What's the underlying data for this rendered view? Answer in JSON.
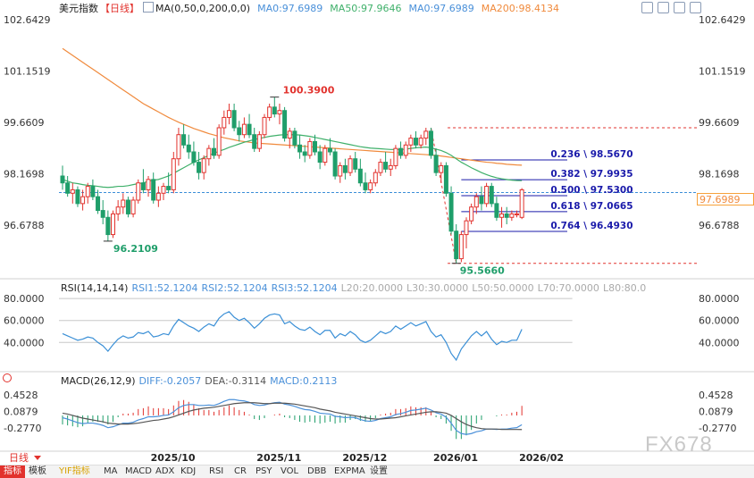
{
  "main_header": {
    "symbol": "美元指数",
    "period": "【日线】",
    "ma_params": "MA(0,50,0,200,0,0)",
    "ma0": "MA0:97.6989",
    "ma50": "MA50:97.9646",
    "ma0b": "MA0:97.6989",
    "ma200": "MA200:98.4134"
  },
  "rsi_header": {
    "title": "RSI(14,14,14)",
    "rsi1": "RSI1:52.1204",
    "rsi2": "RSI2:52.1204",
    "rsi3": "RSI3:52.1204",
    "l20": "L20:20.0000",
    "l30": "L30:30.0000",
    "l50": "L50:50.0000",
    "l70": "L70:70.0000",
    "l80": "L80:80.0"
  },
  "macd_header": {
    "title": "MACD(26,12,9)",
    "diff": "DIFF:-0.2057",
    "dea": "DEA:-0.3114",
    "macd": "MACD:0.2113"
  },
  "date_labels": [
    "2025/10",
    "2025/11",
    "2025/12",
    "2026/01",
    "2026/02"
  ],
  "bottom_bar": {
    "period_button": "日线",
    "tabs": [
      "指标",
      "模板",
      "YIF指标",
      "MA",
      "MACD",
      "ADX",
      "KDJ",
      "RSI",
      "CR",
      "PSY",
      "VOL",
      "DBB",
      "EXPMA",
      "设置"
    ]
  },
  "watermark": "FX678",
  "colors": {
    "up": "#e2322d",
    "down": "#1f9e6a",
    "ma50": "#3fb06a",
    "ma200": "#f08a3c",
    "fib": "#1a1aaa",
    "diff": "#4a90d9",
    "dea": "#555555",
    "price_tag": "#f7a23b"
  },
  "chart_data": [
    {
      "type": "candlestick",
      "title": "美元指数 日线",
      "ylim": [
        95.3,
        103.0
      ],
      "y_ticks": [
        "102.6429",
        "101.1519",
        "99.6609",
        "98.1698",
        "96.6788"
      ],
      "current_price": "97.6989",
      "annotations": {
        "high": "100.3900",
        "low1": "96.2109",
        "low2": "95.5660"
      },
      "fibonacci": [
        {
          "label": "0.236 \\ 98.5670",
          "value": 98.567
        },
        {
          "label": "0.382 \\ 97.9935",
          "value": 97.9935
        },
        {
          "label": "0.500 \\ 97.5300",
          "value": 97.53
        },
        {
          "label": "0.618 \\ 97.0665",
          "value": 97.0665
        },
        {
          "label": "0.764 \\ 96.4930",
          "value": 96.493
        }
      ],
      "fib_top": 99.5,
      "fib_bottom": 95.566,
      "candles": [
        [
          98.1,
          98.4,
          97.7,
          97.9
        ],
        [
          97.9,
          98.1,
          97.5,
          97.6
        ],
        [
          97.6,
          97.9,
          97.3,
          97.7
        ],
        [
          97.7,
          97.8,
          97.2,
          97.3
        ],
        [
          97.3,
          97.7,
          97.1,
          97.5
        ],
        [
          97.5,
          97.9,
          97.3,
          97.8
        ],
        [
          97.8,
          98.0,
          97.4,
          97.5
        ],
        [
          97.5,
          97.7,
          97.0,
          97.1
        ],
        [
          97.1,
          97.4,
          96.7,
          96.9
        ],
        [
          96.9,
          97.1,
          96.21,
          96.4
        ],
        [
          96.4,
          97.1,
          96.3,
          97.0
        ],
        [
          97.0,
          97.4,
          96.8,
          97.2
        ],
        [
          97.2,
          97.6,
          97.0,
          97.4
        ],
        [
          97.4,
          97.5,
          96.9,
          97.0
        ],
        [
          97.0,
          97.5,
          96.9,
          97.4
        ],
        [
          97.4,
          98.0,
          97.3,
          97.9
        ],
        [
          97.9,
          98.3,
          97.6,
          97.7
        ],
        [
          97.7,
          98.1,
          97.5,
          98.0
        ],
        [
          98.0,
          98.2,
          97.3,
          97.4
        ],
        [
          97.4,
          97.8,
          97.2,
          97.6
        ],
        [
          97.6,
          97.9,
          97.4,
          97.8
        ],
        [
          97.8,
          98.2,
          97.6,
          97.7
        ],
        [
          97.7,
          98.8,
          97.6,
          98.6
        ],
        [
          98.6,
          99.5,
          98.4,
          99.3
        ],
        [
          99.3,
          99.6,
          98.9,
          99.0
        ],
        [
          99.0,
          99.3,
          98.6,
          98.8
        ],
        [
          98.8,
          99.1,
          98.4,
          98.5
        ],
        [
          98.5,
          98.8,
          98.0,
          98.2
        ],
        [
          98.2,
          98.7,
          98.0,
          98.6
        ],
        [
          98.6,
          99.0,
          98.4,
          98.9
        ],
        [
          98.9,
          99.2,
          98.6,
          98.7
        ],
        [
          98.7,
          99.6,
          98.6,
          99.5
        ],
        [
          99.5,
          100.0,
          99.3,
          99.8
        ],
        [
          99.8,
          100.2,
          99.6,
          100.0
        ],
        [
          100.0,
          100.2,
          99.4,
          99.5
        ],
        [
          99.5,
          99.7,
          99.1,
          99.3
        ],
        [
          99.3,
          99.8,
          99.2,
          99.6
        ],
        [
          99.6,
          99.9,
          99.2,
          99.3
        ],
        [
          99.3,
          99.5,
          98.8,
          98.9
        ],
        [
          98.9,
          99.4,
          98.8,
          99.3
        ],
        [
          99.3,
          99.9,
          99.2,
          99.8
        ],
        [
          99.8,
          100.2,
          99.7,
          100.1
        ],
        [
          100.1,
          100.39,
          99.8,
          99.9
        ],
        [
          99.9,
          100.2,
          99.6,
          100.0
        ],
        [
          100.0,
          100.1,
          99.1,
          99.2
        ],
        [
          99.2,
          99.5,
          98.9,
          99.4
        ],
        [
          99.4,
          99.5,
          98.9,
          99.0
        ],
        [
          99.0,
          99.3,
          98.6,
          98.8
        ],
        [
          98.8,
          99.0,
          98.5,
          98.7
        ],
        [
          98.7,
          99.2,
          98.6,
          99.1
        ],
        [
          99.1,
          99.3,
          98.7,
          98.8
        ],
        [
          98.8,
          99.0,
          98.3,
          98.5
        ],
        [
          98.5,
          99.0,
          98.4,
          98.9
        ],
        [
          98.9,
          99.2,
          98.7,
          98.8
        ],
        [
          98.8,
          98.9,
          98.0,
          98.1
        ],
        [
          98.1,
          98.5,
          97.9,
          98.4
        ],
        [
          98.4,
          98.6,
          98.0,
          98.2
        ],
        [
          98.2,
          98.7,
          98.1,
          98.6
        ],
        [
          98.6,
          98.8,
          98.2,
          98.3
        ],
        [
          98.3,
          98.6,
          97.8,
          97.9
        ],
        [
          97.9,
          98.2,
          97.6,
          97.7
        ],
        [
          97.7,
          98.0,
          97.6,
          97.9
        ],
        [
          97.9,
          98.3,
          97.8,
          98.2
        ],
        [
          98.2,
          98.6,
          98.1,
          98.5
        ],
        [
          98.5,
          98.8,
          98.2,
          98.3
        ],
        [
          98.3,
          98.6,
          98.1,
          98.4
        ],
        [
          98.4,
          99.0,
          98.3,
          98.9
        ],
        [
          98.9,
          99.1,
          98.6,
          98.7
        ],
        [
          98.7,
          99.1,
          98.6,
          99.0
        ],
        [
          99.0,
          99.3,
          98.8,
          99.2
        ],
        [
          99.2,
          99.4,
          98.9,
          99.0
        ],
        [
          99.0,
          99.3,
          98.9,
          99.2
        ],
        [
          99.2,
          99.5,
          99.0,
          99.4
        ],
        [
          99.4,
          99.5,
          98.6,
          98.7
        ],
        [
          98.7,
          98.9,
          98.1,
          98.2
        ],
        [
          98.2,
          98.5,
          97.9,
          98.4
        ],
        [
          98.4,
          98.5,
          97.5,
          97.6
        ],
        [
          97.6,
          97.8,
          96.4,
          96.5
        ],
        [
          96.5,
          96.7,
          95.566,
          95.7
        ],
        [
          95.7,
          96.5,
          95.6,
          96.4
        ],
        [
          96.4,
          96.9,
          96.0,
          96.8
        ],
        [
          96.8,
          97.3,
          96.7,
          97.2
        ],
        [
          97.2,
          97.6,
          97.0,
          97.5
        ],
        [
          97.5,
          97.8,
          97.1,
          97.3
        ],
        [
          97.3,
          97.9,
          97.2,
          97.8
        ],
        [
          97.8,
          97.9,
          97.2,
          97.3
        ],
        [
          97.3,
          97.5,
          96.8,
          96.9
        ],
        [
          96.9,
          97.2,
          96.6,
          97.0
        ],
        [
          97.0,
          97.2,
          96.7,
          96.9
        ],
        [
          96.9,
          97.1,
          96.8,
          97.0
        ],
        [
          97.0,
          97.1,
          96.9,
          97.0
        ],
        [
          96.9,
          97.75,
          96.85,
          97.6989
        ]
      ],
      "ma50": [
        98.0,
        97.95,
        97.9,
        97.88,
        97.85,
        97.83,
        97.82,
        97.8,
        97.78,
        97.77,
        97.78,
        97.8,
        97.8,
        97.82,
        97.85,
        97.88,
        97.9,
        97.95,
        97.98,
        98.0,
        98.05,
        98.1,
        98.18,
        98.26,
        98.34,
        98.42,
        98.5,
        98.57,
        98.63,
        98.7,
        98.76,
        98.82,
        98.87,
        98.93,
        98.98,
        99.03,
        99.08,
        99.12,
        99.16,
        99.19,
        99.22,
        99.25,
        99.27,
        99.29,
        99.3,
        99.3,
        99.3,
        99.29,
        99.27,
        99.25,
        99.22,
        99.19,
        99.16,
        99.13,
        99.1,
        99.07,
        99.04,
        99.01,
        98.98,
        98.95,
        98.93,
        98.91,
        98.9,
        98.89,
        98.88,
        98.87,
        98.87,
        98.87,
        98.88,
        98.9,
        98.92,
        98.93,
        98.94,
        98.92,
        98.88,
        98.84,
        98.78,
        98.7,
        98.6,
        98.5,
        98.42,
        98.34,
        98.27,
        98.2,
        98.14,
        98.09,
        98.05,
        98.02,
        98.0,
        97.98,
        97.97,
        97.965
      ],
      "ma200": [
        101.8,
        101.7,
        101.6,
        101.5,
        101.4,
        101.3,
        101.2,
        101.1,
        101.0,
        100.9,
        100.8,
        100.7,
        100.6,
        100.5,
        100.4,
        100.3,
        100.2,
        100.12,
        100.04,
        99.96,
        99.88,
        99.8,
        99.73,
        99.66,
        99.6,
        99.54,
        99.48,
        99.43,
        99.38,
        99.33,
        99.29,
        99.25,
        99.21,
        99.18,
        99.15,
        99.12,
        99.1,
        99.08,
        99.06,
        99.05,
        99.04,
        99.03,
        99.02,
        99.01,
        99.0,
        98.99,
        98.98,
        98.97,
        98.96,
        98.95,
        98.94,
        98.93,
        98.92,
        98.91,
        98.9,
        98.89,
        98.88,
        98.87,
        98.86,
        98.85,
        98.84,
        98.83,
        98.82,
        98.81,
        98.8,
        98.79,
        98.78,
        98.77,
        98.76,
        98.75,
        98.74,
        98.73,
        98.72,
        98.71,
        98.7,
        98.68,
        98.66,
        98.64,
        98.62,
        98.6,
        98.58,
        98.56,
        98.54,
        98.52,
        98.5,
        98.49,
        98.47,
        98.46,
        98.44,
        98.43,
        98.42,
        98.4134
      ]
    },
    {
      "type": "line",
      "title": "RSI(14,14,14)",
      "ylim": [
        15,
        85
      ],
      "y_ticks": [
        "80.0000",
        "60.0000",
        "40.0000"
      ],
      "series": [
        {
          "name": "RSI1",
          "values": [
            48,
            46,
            44,
            42,
            43,
            45,
            44,
            40,
            37,
            32,
            38,
            43,
            46,
            44,
            45,
            49,
            48,
            50,
            45,
            46,
            48,
            47,
            55,
            61,
            58,
            55,
            53,
            50,
            54,
            57,
            55,
            62,
            66,
            68,
            63,
            60,
            62,
            58,
            53,
            57,
            62,
            65,
            66,
            65,
            57,
            59,
            55,
            52,
            51,
            54,
            50,
            47,
            51,
            51,
            44,
            48,
            46,
            50,
            47,
            42,
            40,
            42,
            46,
            50,
            48,
            50,
            55,
            52,
            55,
            58,
            55,
            57,
            59,
            50,
            45,
            47,
            40,
            30,
            24,
            34,
            40,
            46,
            50,
            46,
            50,
            43,
            38,
            41,
            40,
            42,
            42,
            52
          ]
        }
      ],
      "levels": [
        80,
        60,
        40
      ]
    },
    {
      "type": "bar",
      "title": "MACD(26,12,9)",
      "ylim": [
        -0.75,
        0.65
      ],
      "y_ticks": [
        "0.4528",
        "0.0879",
        "-0.2770"
      ],
      "series": [
        {
          "name": "DIFF",
          "values": [
            -0.05,
            -0.08,
            -0.12,
            -0.16,
            -0.18,
            -0.17,
            -0.17,
            -0.19,
            -0.22,
            -0.27,
            -0.25,
            -0.21,
            -0.17,
            -0.17,
            -0.15,
            -0.1,
            -0.07,
            -0.03,
            -0.03,
            -0.02,
            0.0,
            0.01,
            0.08,
            0.17,
            0.22,
            0.24,
            0.24,
            0.22,
            0.22,
            0.23,
            0.22,
            0.26,
            0.31,
            0.35,
            0.35,
            0.33,
            0.32,
            0.29,
            0.24,
            0.22,
            0.23,
            0.26,
            0.28,
            0.29,
            0.25,
            0.23,
            0.2,
            0.16,
            0.13,
            0.12,
            0.09,
            0.05,
            0.04,
            0.03,
            -0.02,
            -0.03,
            -0.05,
            -0.04,
            -0.05,
            -0.09,
            -0.12,
            -0.13,
            -0.11,
            -0.07,
            -0.05,
            -0.03,
            0.02,
            0.04,
            0.07,
            0.11,
            0.12,
            0.14,
            0.16,
            0.12,
            0.06,
            0.03,
            -0.04,
            -0.17,
            -0.33,
            -0.4,
            -0.42,
            -0.4,
            -0.36,
            -0.34,
            -0.3,
            -0.3,
            -0.31,
            -0.3,
            -0.3,
            -0.28,
            -0.27,
            -0.2057
          ]
        },
        {
          "name": "DEA",
          "values": [
            0.05,
            0.03,
            0.0,
            -0.03,
            -0.06,
            -0.08,
            -0.1,
            -0.12,
            -0.14,
            -0.17,
            -0.18,
            -0.19,
            -0.19,
            -0.19,
            -0.18,
            -0.17,
            -0.15,
            -0.13,
            -0.11,
            -0.1,
            -0.08,
            -0.06,
            -0.03,
            0.01,
            0.05,
            0.09,
            0.12,
            0.14,
            0.16,
            0.17,
            0.18,
            0.2,
            0.22,
            0.24,
            0.26,
            0.27,
            0.28,
            0.28,
            0.28,
            0.27,
            0.26,
            0.26,
            0.27,
            0.27,
            0.27,
            0.26,
            0.25,
            0.23,
            0.21,
            0.19,
            0.17,
            0.14,
            0.12,
            0.1,
            0.07,
            0.05,
            0.03,
            0.01,
            -0.01,
            -0.03,
            -0.05,
            -0.07,
            -0.08,
            -0.08,
            -0.07,
            -0.06,
            -0.05,
            -0.03,
            -0.01,
            0.01,
            0.03,
            0.05,
            0.07,
            0.08,
            0.08,
            0.07,
            0.05,
            0.0,
            -0.07,
            -0.14,
            -0.2,
            -0.24,
            -0.27,
            -0.29,
            -0.3,
            -0.3,
            -0.3,
            -0.31,
            -0.31,
            -0.31,
            -0.31,
            -0.3114
          ]
        }
      ],
      "histogram_values": [
        -0.2,
        -0.22,
        -0.24,
        -0.26,
        -0.24,
        -0.18,
        -0.14,
        -0.14,
        -0.16,
        -0.2,
        -0.14,
        -0.04,
        0.04,
        0.04,
        0.06,
        0.14,
        0.16,
        0.2,
        0.16,
        0.16,
        0.16,
        0.14,
        0.22,
        0.32,
        0.34,
        0.3,
        0.24,
        0.16,
        0.12,
        0.12,
        0.08,
        0.12,
        0.18,
        0.22,
        0.18,
        0.12,
        0.08,
        0.02,
        -0.08,
        -0.1,
        -0.06,
        0.0,
        0.02,
        0.04,
        -0.04,
        -0.06,
        -0.1,
        -0.14,
        -0.16,
        -0.14,
        -0.16,
        -0.18,
        -0.16,
        -0.14,
        -0.18,
        -0.16,
        -0.16,
        -0.1,
        -0.08,
        -0.12,
        -0.14,
        -0.12,
        -0.06,
        0.02,
        0.04,
        0.06,
        0.14,
        0.14,
        0.16,
        0.2,
        0.18,
        0.18,
        0.18,
        0.08,
        -0.04,
        -0.08,
        -0.18,
        -0.34,
        -0.52,
        -0.52,
        -0.44,
        -0.32,
        -0.18,
        -0.1,
        0.0,
        0.0,
        -0.02,
        0.02,
        0.02,
        0.06,
        0.08,
        0.2113
      ]
    }
  ]
}
